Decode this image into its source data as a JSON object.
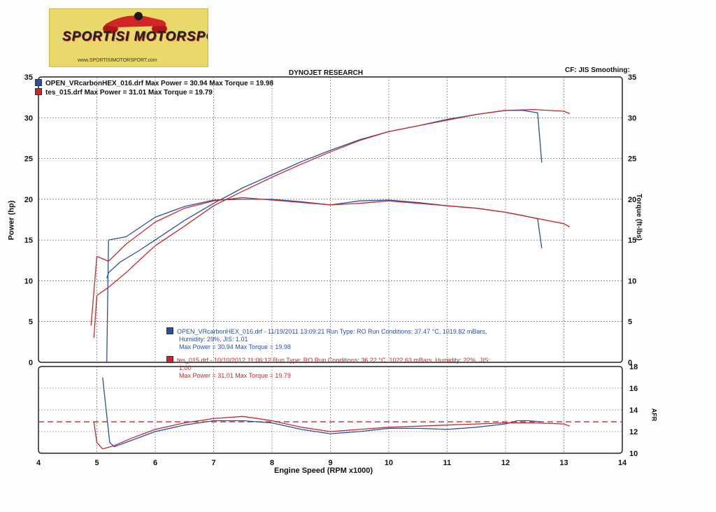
{
  "logo": {
    "brand": "SPORTISI MOTORSPORT",
    "url": "www.SPORTISIMOTORSPORT.com"
  },
  "header": {
    "title": "DYNOJET RESEARCH",
    "cf": "CF: JIS  Smoothing:"
  },
  "top_legend": [
    {
      "text": "OPEN_VRcarbonHEX_016.drf Max Power = 30.94    Max Torque = 19.98",
      "color": "#2a4fa0"
    },
    {
      "text": "tes_015.drf Max Power = 31.01    Max Torque = 19.79",
      "color": "#c8282a"
    }
  ],
  "runs": [
    {
      "color": "#2a4fa0",
      "lines": [
        "OPEN_VRcarbonHEX_016.drf - 11/19/2011 13:09:21  Run Type: RO  Run Conditions: 37.47 °C, 1019.82 mBars,",
        "Humidity:  29%, JIS: 1.01",
        "Max Power = 30.94  Max Torque = 19.98"
      ]
    },
    {
      "color": "#c8282a",
      "lines": [
        "tes_015.drf - 10/10/2012 11:06:12  Run Type: RO  Run Conditions: 36.22 °C, 1022.63 mBars,  Humidity:  22%, JIS:",
        "1.00",
        "Max Power = 31.01  Max Torque = 19.79"
      ]
    }
  ],
  "chart_data": [
    {
      "type": "line",
      "ylabel": "Power (hp)",
      "y2label": "Torque (ft-lbs)",
      "xlim": [
        4,
        14
      ],
      "ylim": [
        0,
        35
      ],
      "yticks": [
        0,
        5,
        10,
        15,
        20,
        25,
        30,
        35
      ],
      "grid": true,
      "series": [
        {
          "name": "OPEN_VRcarbonHEX_016.drf",
          "measure": "power",
          "color": "#2a4fa0",
          "x": [
            5.17,
            5.2,
            5.4,
            5.7,
            6.0,
            6.5,
            7.0,
            7.5,
            8.0,
            8.5,
            9.0,
            9.5,
            10.0,
            10.5,
            11.0,
            11.5,
            12.0,
            12.3,
            12.55,
            12.62
          ],
          "y": [
            10.3,
            11.0,
            12.3,
            13.6,
            15.0,
            17.4,
            19.5,
            21.4,
            23.0,
            24.6,
            26.0,
            27.3,
            28.3,
            29.0,
            29.8,
            30.4,
            30.9,
            30.9,
            30.6,
            24.5
          ]
        },
        {
          "name": "tes_015.drf",
          "measure": "power",
          "color": "#c8282a",
          "x": [
            4.95,
            5.0,
            5.2,
            5.5,
            5.8,
            6.0,
            6.5,
            7.0,
            7.5,
            8.0,
            8.5,
            9.0,
            9.5,
            10.0,
            10.5,
            11.0,
            11.5,
            12.0,
            12.5,
            13.0,
            13.1
          ],
          "y": [
            3.0,
            8.2,
            9.2,
            11.0,
            13.0,
            14.3,
            16.7,
            19.2,
            21.0,
            22.7,
            24.3,
            25.8,
            27.2,
            28.3,
            29.0,
            29.7,
            30.4,
            30.9,
            31.0,
            30.8,
            30.5
          ]
        },
        {
          "name": "OPEN_VRcarbonHEX_016.drf",
          "measure": "torque",
          "color": "#2a4fa0",
          "x": [
            5.17,
            5.2,
            5.5,
            6.0,
            6.5,
            7.0,
            7.5,
            8.0,
            8.5,
            9.0,
            9.5,
            10.0,
            10.5,
            11.0,
            11.5,
            12.0,
            12.3,
            12.55,
            12.62
          ],
          "y": [
            0,
            15.0,
            15.4,
            17.8,
            19.1,
            19.9,
            20.0,
            20.0,
            19.7,
            19.3,
            19.8,
            19.9,
            19.6,
            19.2,
            18.9,
            18.4,
            18.0,
            17.6,
            14.0
          ]
        },
        {
          "name": "tes_015.drf",
          "measure": "torque",
          "color": "#c8282a",
          "x": [
            4.9,
            5.0,
            5.2,
            5.5,
            6.0,
            6.5,
            7.0,
            7.5,
            8.0,
            8.5,
            9.0,
            9.5,
            10.0,
            10.5,
            11.0,
            11.5,
            12.0,
            12.5,
            13.0,
            13.1
          ],
          "y": [
            4.5,
            13.0,
            12.4,
            14.5,
            17.2,
            18.9,
            19.8,
            20.2,
            19.9,
            19.6,
            19.3,
            19.5,
            19.8,
            19.5,
            19.2,
            18.9,
            18.4,
            17.7,
            17.0,
            16.6
          ]
        }
      ]
    },
    {
      "type": "line",
      "xlabel": "Engine Speed (RPM x1000)",
      "y2label": "AFR",
      "xlim": [
        4,
        14
      ],
      "ylim": [
        10,
        18
      ],
      "xticks": [
        4,
        5,
        6,
        7,
        8,
        9,
        10,
        11,
        12,
        13,
        14
      ],
      "yticks": [
        10,
        12,
        14,
        16,
        18
      ],
      "grid": true,
      "reference_line": 12.9,
      "series": [
        {
          "name": "OPEN_VRcarbonHEX_016.drf",
          "color": "#2a4fa0",
          "x": [
            5.1,
            5.15,
            5.22,
            5.3,
            5.5,
            6.0,
            6.5,
            7.0,
            7.5,
            8.0,
            8.5,
            9.0,
            9.5,
            10.0,
            10.5,
            11.0,
            11.5,
            12.0,
            12.2,
            12.4,
            12.6
          ],
          "y": [
            17.0,
            14.5,
            11.0,
            10.6,
            11.0,
            12.0,
            12.6,
            13.0,
            13.0,
            12.8,
            12.2,
            11.8,
            12.0,
            12.3,
            12.3,
            12.2,
            12.4,
            12.7,
            13.0,
            13.0,
            12.9
          ]
        },
        {
          "name": "tes_015.drf",
          "color": "#c8282a",
          "x": [
            4.95,
            5.0,
            5.1,
            5.3,
            5.6,
            6.0,
            6.5,
            7.0,
            7.5,
            8.0,
            8.5,
            9.0,
            9.5,
            10.0,
            10.5,
            11.0,
            11.5,
            12.0,
            12.5,
            13.0,
            13.1
          ],
          "y": [
            12.9,
            11.0,
            10.4,
            10.7,
            11.4,
            12.2,
            12.8,
            13.2,
            13.4,
            13.0,
            12.4,
            12.0,
            12.2,
            12.4,
            12.5,
            12.6,
            12.7,
            12.8,
            12.8,
            12.7,
            12.5
          ]
        }
      ]
    }
  ]
}
